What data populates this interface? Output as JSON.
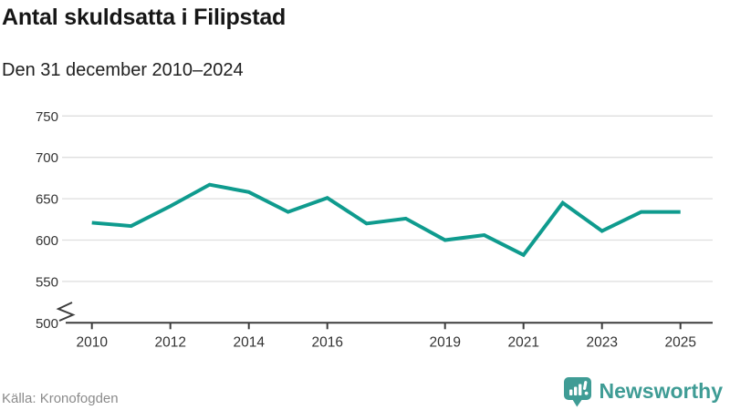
{
  "header": {
    "title": "Antal skuldsatta i Filipstad",
    "subtitle": "Den 31 december 2010–2024"
  },
  "footer": {
    "source": "Källa: Kronofogden",
    "brand": "Newsworthy"
  },
  "colors": {
    "line": "#0f9b8e",
    "grid": "#dedede",
    "axis": "#3d3d3d",
    "tick_label": "#333333",
    "title_text": "#161616",
    "subtitle_text": "#1f1f1f",
    "source_text": "#8b8b8b",
    "brand": "#3f9c95",
    "background": "#ffffff"
  },
  "chart_data": {
    "type": "line",
    "title": "Antal skuldsatta i Filipstad",
    "subtitle": "Den 31 december 2010–2024",
    "x": [
      2010,
      2011,
      2012,
      2013,
      2014,
      2015,
      2016,
      2017,
      2018,
      2019,
      2020,
      2021,
      2022,
      2023,
      2024,
      2025
    ],
    "values": [
      621,
      617,
      641,
      667,
      658,
      634,
      651,
      620,
      626,
      600,
      606,
      582,
      645,
      611,
      634,
      634
    ],
    "xtick_years": [
      2010,
      2012,
      2014,
      2016,
      2019,
      2021,
      2023,
      2025
    ],
    "xtick_labels": [
      "2010",
      "2012",
      "2014",
      "2016",
      "2019",
      "2021",
      "2023",
      "2025"
    ],
    "yticks": [
      500,
      550,
      600,
      650,
      700,
      750
    ],
    "ylim": [
      500,
      765
    ],
    "xlim": [
      2009.3,
      2025.8
    ],
    "grid": "horizontal",
    "legend": "none",
    "y_axis_break": true
  }
}
